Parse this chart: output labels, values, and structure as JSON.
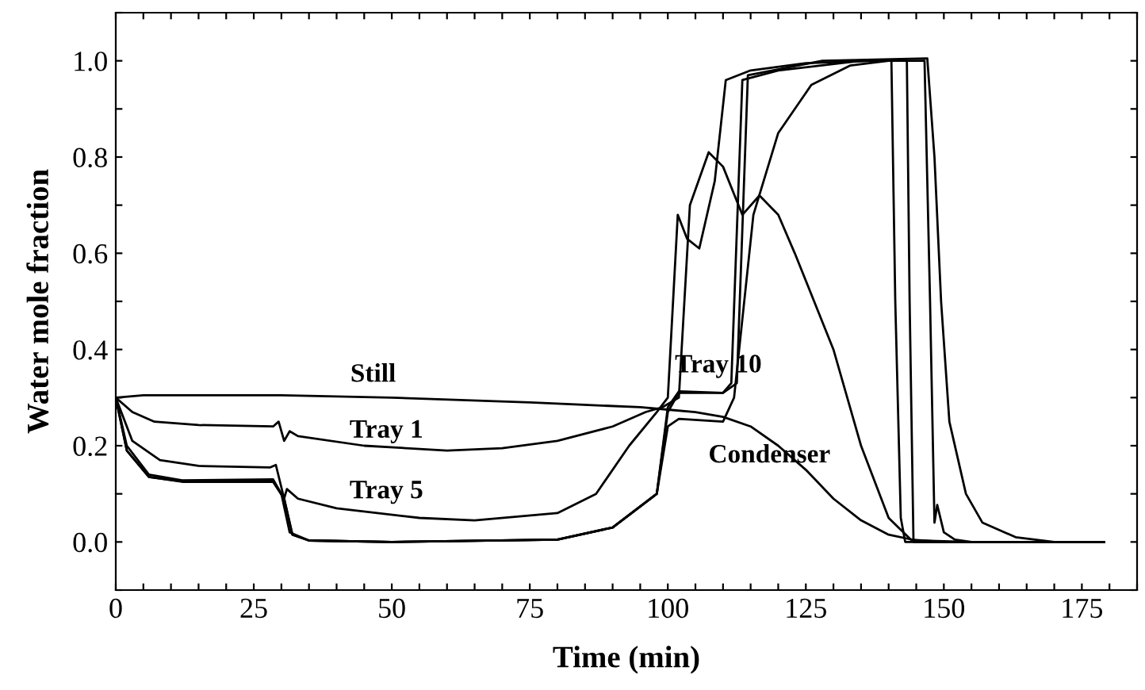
{
  "chart_data": {
    "type": "line",
    "xlabel": "Time (min)",
    "ylabel": "Water mole fraction",
    "xlim": [
      0,
      185
    ],
    "ylim": [
      -0.1,
      1.1
    ],
    "xticks": [
      0,
      {
        "value": 5,
        "label": null
      },
      {
        "value": 10,
        "label": null
      },
      {
        "value": 15,
        "label": null
      },
      {
        "value": 20,
        "label": null
      },
      25,
      {
        "value": 30,
        "label": null
      },
      {
        "value": 35,
        "label": null
      },
      {
        "value": 40,
        "label": null
      },
      {
        "value": 45,
        "label": null
      },
      50,
      {
        "value": 55,
        "label": null
      },
      {
        "value": 60,
        "label": null
      },
      {
        "value": 65,
        "label": null
      },
      {
        "value": 70,
        "label": null
      },
      75,
      {
        "value": 80,
        "label": null
      },
      {
        "value": 85,
        "label": null
      },
      {
        "value": 90,
        "label": null
      },
      {
        "value": 95,
        "label": null
      },
      100,
      {
        "value": 105,
        "label": null
      },
      {
        "value": 110,
        "label": null
      },
      {
        "value": 115,
        "label": null
      },
      {
        "value": 120,
        "label": null
      },
      125,
      {
        "value": 130,
        "label": null
      },
      {
        "value": 135,
        "label": null
      },
      {
        "value": 140,
        "label": null
      },
      {
        "value": 145,
        "label": null
      },
      150,
      {
        "value": 155,
        "label": null
      },
      {
        "value": 160,
        "label": null
      },
      {
        "value": 165,
        "label": null
      },
      {
        "value": 170,
        "label": null
      },
      175,
      {
        "value": 180,
        "label": null
      },
      {
        "value": 185,
        "label": null
      }
    ],
    "yticks": [
      {
        "value": -0.1,
        "label": null
      },
      {
        "value": 0,
        "label": "0.0"
      },
      {
        "value": 0.1,
        "label": null
      },
      {
        "value": 0.2,
        "label": "0.2"
      },
      {
        "value": 0.3,
        "label": null
      },
      {
        "value": 0.4,
        "label": "0.4"
      },
      {
        "value": 0.5,
        "label": null
      },
      {
        "value": 0.6,
        "label": "0.6"
      },
      {
        "value": 0.7,
        "label": null
      },
      {
        "value": 0.8,
        "label": "0.8"
      },
      {
        "value": 0.9,
        "label": null
      },
      {
        "value": 1.0,
        "label": "1.0"
      },
      {
        "value": 1.1,
        "label": null
      }
    ],
    "grid": false,
    "legend": false,
    "marker": "none",
    "line_style": "solid",
    "series": [
      {
        "color": "#000000",
        "x": [
          0,
          5,
          30,
          50,
          75,
          95,
          100,
          105,
          110,
          115,
          120,
          125,
          130,
          135,
          140,
          145,
          155,
          179
        ],
        "values": [
          0.3,
          0.305,
          0.305,
          0.3,
          0.29,
          0.28,
          0.275,
          0.27,
          0.26,
          0.24,
          0.2,
          0.15,
          0.09,
          0.045,
          0.015,
          0.003,
          0,
          0
        ]
      },
      {
        "color": "#000000",
        "x": [
          0,
          3,
          7,
          15,
          28.5,
          29.5,
          30.5,
          31.5,
          33,
          45,
          60,
          70,
          80,
          90,
          96,
          99,
          102,
          104,
          107.4,
          110,
          113.5,
          116.6,
          120,
          123,
          130,
          135,
          140,
          144,
          150,
          179
        ],
        "values": [
          0.3,
          0.27,
          0.25,
          0.243,
          0.24,
          0.25,
          0.21,
          0.23,
          0.22,
          0.2,
          0.19,
          0.195,
          0.21,
          0.24,
          0.27,
          0.28,
          0.3,
          0.7,
          0.81,
          0.78,
          0.68,
          0.72,
          0.68,
          0.6,
          0.4,
          0.2,
          0.05,
          0.005,
          0,
          0
        ]
      },
      {
        "color": "#000000",
        "x": [
          0,
          3,
          8,
          15,
          28,
          29,
          30.5,
          31,
          33,
          40,
          55,
          65,
          80,
          87,
          93,
          98,
          100,
          101.8,
          103.5,
          105.7,
          108.5,
          110.5,
          115,
          125,
          138,
          140.5,
          141.2,
          142.2,
          143,
          179
        ],
        "values": [
          0.3,
          0.21,
          0.17,
          0.158,
          0.155,
          0.16,
          0.09,
          0.11,
          0.09,
          0.07,
          0.05,
          0.045,
          0.06,
          0.1,
          0.2,
          0.27,
          0.3,
          0.68,
          0.63,
          0.61,
          0.75,
          0.96,
          0.98,
          0.995,
          1.0,
          1.0,
          0.5,
          0.05,
          0,
          0
        ]
      },
      {
        "color": "#000000",
        "x": [
          0,
          2,
          6,
          12,
          28.5,
          30,
          31.5,
          35,
          50,
          80,
          90,
          98,
          100,
          102,
          110,
          111.5,
          113.5,
          120,
          135,
          143.3,
          143.8,
          144.5,
          179
        ],
        "values": [
          0.3,
          0.2,
          0.14,
          0.128,
          0.13,
          0.1,
          0.02,
          0.003,
          0,
          0.005,
          0.03,
          0.1,
          0.28,
          0.313,
          0.31,
          0.33,
          0.96,
          0.98,
          1.0,
          1.0,
          0.5,
          0,
          0
        ]
      },
      {
        "color": "#000000",
        "x": [
          0,
          2,
          6,
          12,
          28.5,
          30.5,
          32,
          35,
          50,
          80,
          90,
          98,
          100,
          102,
          110,
          112,
          115.5,
          120,
          126,
          133,
          140,
          146.5,
          147.5,
          148.3,
          148.8,
          150,
          152,
          155,
          179
        ],
        "values": [
          0.3,
          0.19,
          0.135,
          0.125,
          0.125,
          0.09,
          0.015,
          0.003,
          0,
          0.005,
          0.03,
          0.1,
          0.24,
          0.256,
          0.25,
          0.3,
          0.68,
          0.85,
          0.95,
          0.99,
          1.0,
          1.0,
          0.5,
          0.04,
          0.077,
          0.02,
          0.005,
          0,
          0
        ]
      },
      {
        "color": "#000000",
        "x": [
          0,
          2,
          6,
          12,
          28.5,
          30.5,
          32,
          35,
          50,
          80,
          90,
          98,
          100,
          102,
          110,
          112.5,
          114.5,
          128,
          147,
          148.3,
          149.5,
          151,
          154,
          157,
          163,
          170,
          179
        ],
        "values": [
          0.3,
          0.19,
          0.135,
          0.126,
          0.126,
          0.09,
          0.015,
          0.003,
          0,
          0.005,
          0.03,
          0.1,
          0.27,
          0.31,
          0.31,
          0.33,
          0.97,
          1.0,
          1.005,
          0.8,
          0.5,
          0.25,
          0.1,
          0.04,
          0.01,
          0,
          0
        ]
      }
    ],
    "annotations": [
      "Still",
      "Tray 1",
      "Tray 5",
      "Tray 10",
      "Condenser"
    ]
  }
}
